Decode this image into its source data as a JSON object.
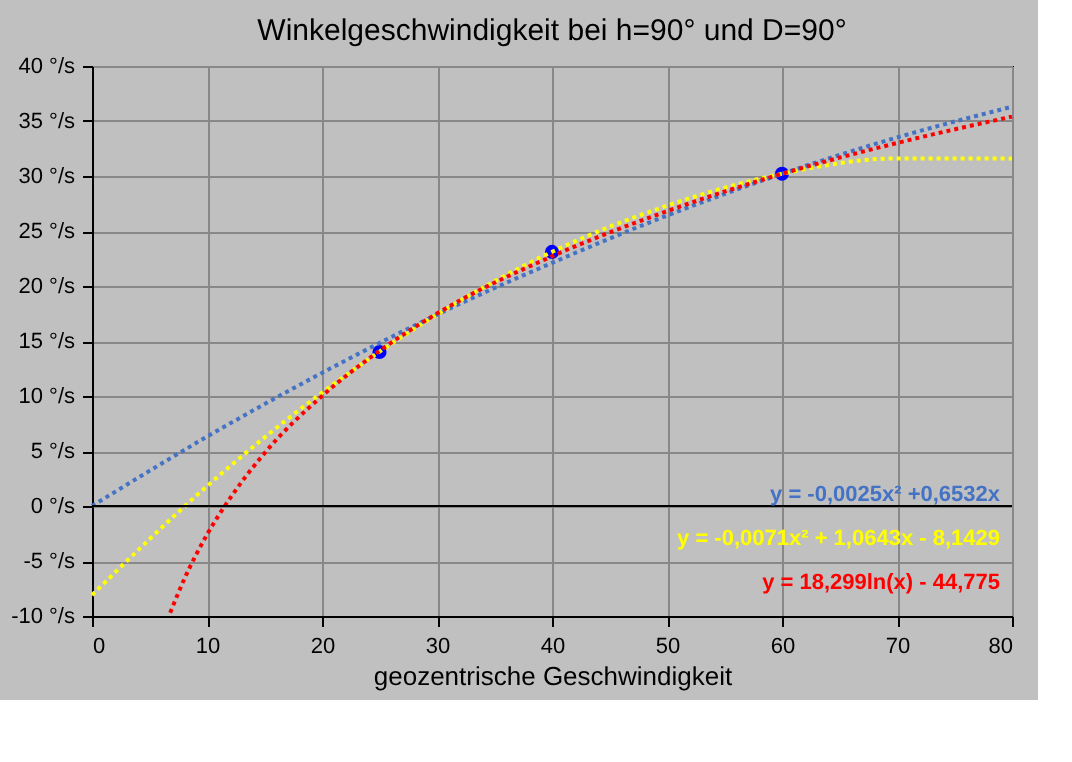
{
  "chart_data": {
    "type": "scatter",
    "title": "Winkelgeschwindigkeit  bei h=90° und D=90°",
    "xlabel": "geozentrische Geschwindigkeit",
    "x": [
      25,
      40,
      60
    ],
    "series": [
      {
        "color": "#0000ff",
        "values": [
          14.0,
          23.1,
          30.2
        ],
        "marker": "circle"
      },
      {
        "name": "y = -0,0025x² +0,6532x",
        "type": "line",
        "color": "#4472c4",
        "line_style": "dotted",
        "x": [
          0,
          10,
          20,
          30,
          40,
          50,
          60,
          70,
          80
        ],
        "values": [
          0,
          6.3,
          12.1,
          17.4,
          22.1,
          26.4,
          30.2,
          33.5,
          36.3
        ]
      },
      {
        "name": "y = -0,0071x² + 1,0643x - 8,1429",
        "type": "line",
        "color": "#ffff00",
        "line_style": "dotted",
        "x": [
          0,
          10,
          20,
          30,
          40,
          50,
          60,
          70,
          80
        ],
        "values": [
          -8.1,
          1.8,
          10.3,
          17.4,
          23.1,
          27.3,
          30.2,
          31.6,
          31.6
        ]
      },
      {
        "name": "y = 18,299ln(x) - 44,775",
        "type": "line",
        "color": "#ff0000",
        "line_style": "dotted",
        "x": [
          6.8,
          8,
          10,
          12,
          15,
          20,
          25,
          30,
          40,
          50,
          60,
          70,
          80
        ],
        "values": [
          -9.7,
          -6.7,
          -2.6,
          0.7,
          4.8,
          10.0,
          14.1,
          17.5,
          22.7,
          26.8,
          30.2,
          33.0,
          35.4
        ]
      }
    ],
    "xlim": [
      0,
      80
    ],
    "xticks": [
      0,
      10,
      20,
      30,
      40,
      50,
      60,
      70,
      80
    ],
    "ylim": [
      -10,
      40
    ],
    "yticks": [
      {
        "value": -10,
        "label": "-10 °/s"
      },
      {
        "value": -5,
        "label": "-5 °/s"
      },
      {
        "value": 0,
        "label": "0 °/s"
      },
      {
        "value": 5,
        "label": "5 °/s"
      },
      {
        "value": 10,
        "label": "10 °/s"
      },
      {
        "value": 15,
        "label": "15 °/s"
      },
      {
        "value": 20,
        "label": "20 °/s"
      },
      {
        "value": 25,
        "label": "25 °/s"
      },
      {
        "value": 30,
        "label": "30 °/s"
      },
      {
        "value": 35,
        "label": "35 °/s"
      },
      {
        "value": 40,
        "label": "40 °/s"
      }
    ],
    "ref_lines": [
      {
        "axis": "y",
        "value": 0,
        "color": "#000000",
        "line_style": "solid"
      }
    ],
    "grid": true
  }
}
